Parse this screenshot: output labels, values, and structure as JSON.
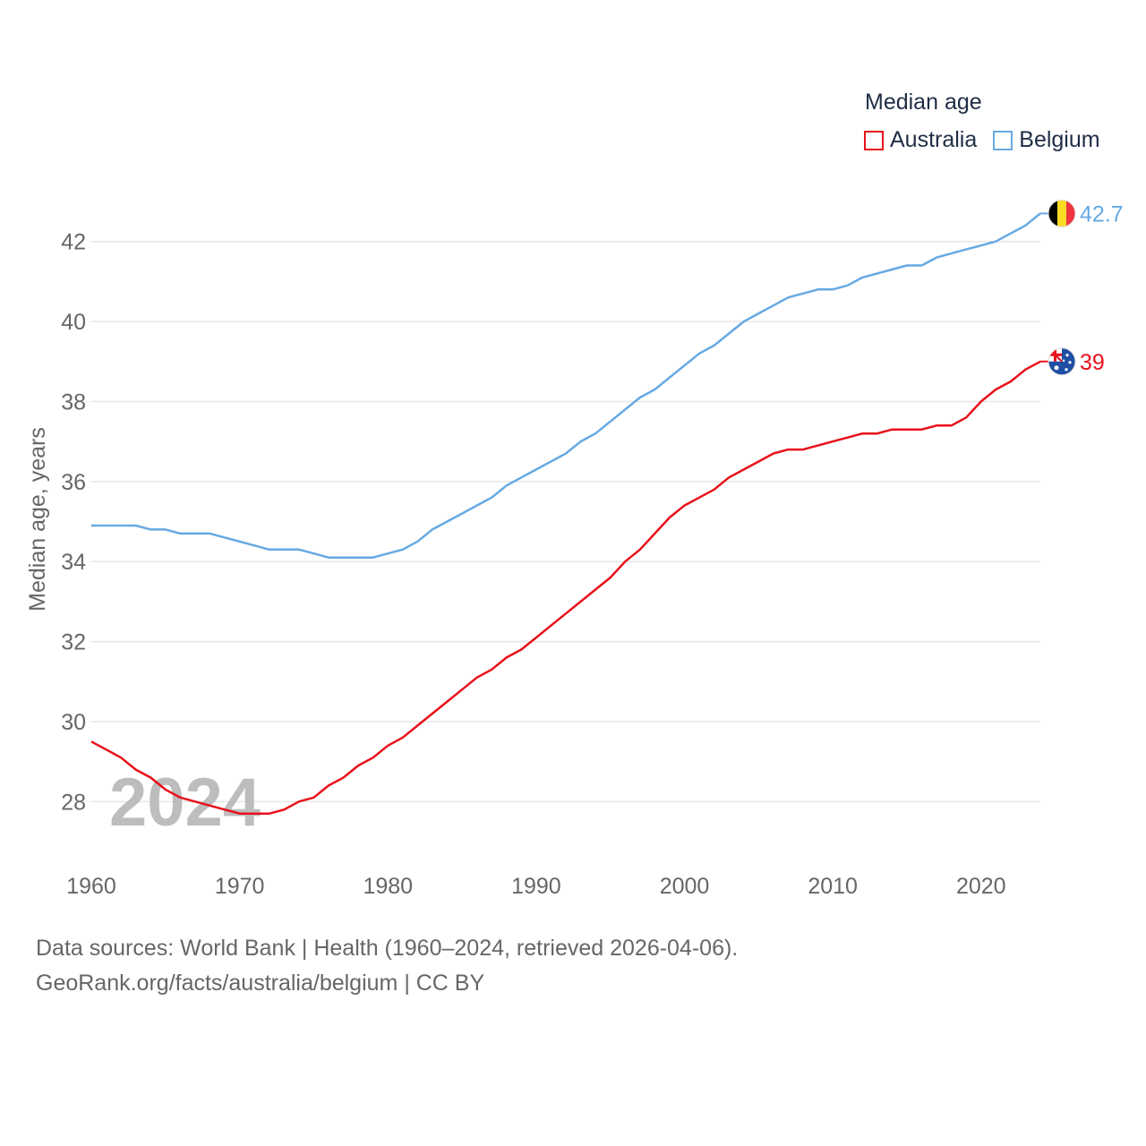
{
  "legend": {
    "title": "Median age",
    "items": [
      {
        "label": "Australia",
        "color": "#e8111a"
      },
      {
        "label": "Belgium",
        "color": "#66a9e3"
      }
    ]
  },
  "footer": {
    "line1": "Data sources: World Bank | Health (1960–2024, retrieved 2026-04-06).",
    "line2": "GeoRank.org/facts/australia/belgium | CC BY"
  },
  "chart_data": {
    "type": "line",
    "ylabel": "Median age, years",
    "xlabel": "",
    "year_watermark": "2024",
    "xlim": [
      1960,
      2024
    ],
    "ylim": [
      27,
      43
    ],
    "x_ticks": [
      1960,
      1970,
      1980,
      1990,
      2000,
      2010,
      2020
    ],
    "y_ticks": [
      28,
      30,
      32,
      34,
      36,
      38,
      40,
      42
    ],
    "x": [
      1960,
      1961,
      1962,
      1963,
      1964,
      1965,
      1966,
      1967,
      1968,
      1969,
      1970,
      1971,
      1972,
      1973,
      1974,
      1975,
      1976,
      1977,
      1978,
      1979,
      1980,
      1981,
      1982,
      1983,
      1984,
      1985,
      1986,
      1987,
      1988,
      1989,
      1990,
      1991,
      1992,
      1993,
      1994,
      1995,
      1996,
      1997,
      1998,
      1999,
      2000,
      2001,
      2002,
      2003,
      2004,
      2005,
      2006,
      2007,
      2008,
      2009,
      2010,
      2011,
      2012,
      2013,
      2014,
      2015,
      2016,
      2017,
      2018,
      2019,
      2020,
      2021,
      2022,
      2023,
      2024
    ],
    "series": [
      {
        "name": "Australia",
        "color": "#e8111a",
        "end_label": "39",
        "values": [
          29.5,
          29.3,
          29.1,
          28.8,
          28.6,
          28.3,
          28.1,
          28.0,
          27.9,
          27.8,
          27.7,
          27.7,
          27.7,
          27.8,
          28.0,
          28.1,
          28.4,
          28.6,
          28.9,
          29.1,
          29.4,
          29.6,
          29.9,
          30.2,
          30.5,
          30.8,
          31.1,
          31.3,
          31.6,
          31.8,
          32.1,
          32.4,
          32.7,
          33.0,
          33.3,
          33.6,
          34.0,
          34.3,
          34.7,
          35.1,
          35.4,
          35.6,
          35.8,
          36.1,
          36.3,
          36.5,
          36.7,
          36.8,
          36.8,
          36.9,
          37.0,
          37.1,
          37.2,
          37.2,
          37.3,
          37.3,
          37.3,
          37.4,
          37.4,
          37.6,
          38.0,
          38.3,
          38.5,
          38.8,
          39.0
        ]
      },
      {
        "name": "Belgium",
        "color": "#66a9e3",
        "end_label": "42.7",
        "values": [
          34.9,
          34.9,
          34.9,
          34.9,
          34.8,
          34.8,
          34.7,
          34.7,
          34.7,
          34.6,
          34.5,
          34.4,
          34.3,
          34.3,
          34.3,
          34.2,
          34.1,
          34.1,
          34.1,
          34.1,
          34.2,
          34.3,
          34.5,
          34.8,
          35.0,
          35.2,
          35.4,
          35.6,
          35.9,
          36.1,
          36.3,
          36.5,
          36.7,
          37.0,
          37.2,
          37.5,
          37.8,
          38.1,
          38.3,
          38.6,
          38.9,
          39.2,
          39.4,
          39.7,
          40.0,
          40.2,
          40.4,
          40.6,
          40.7,
          40.8,
          40.8,
          40.9,
          41.1,
          41.2,
          41.3,
          41.4,
          41.4,
          41.6,
          41.7,
          41.8,
          41.9,
          42.0,
          42.2,
          42.4,
          42.7
        ]
      }
    ]
  }
}
